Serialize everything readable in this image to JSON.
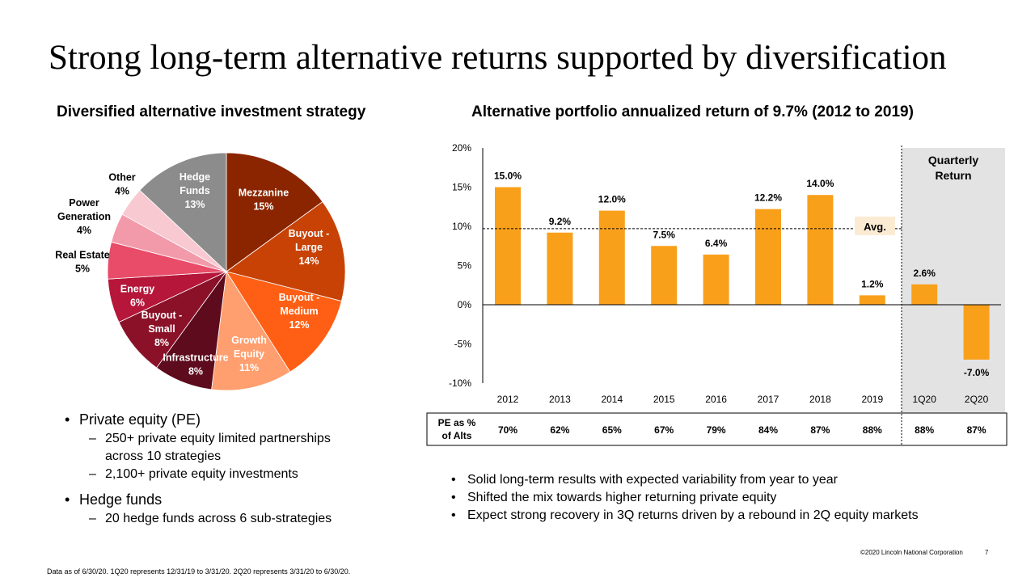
{
  "title": "Strong long-term alternative returns supported by diversification",
  "left_heading": "Diversified alternative investment strategy",
  "right_heading": "Alternative portfolio annualized return of 9.7% (2012 to 2019)",
  "left_bullets": [
    {
      "text": "Private equity (PE)",
      "subs": [
        "250+ private equity limited partnerships",
        "across 10 strategies",
        "2,100+ private equity investments"
      ]
    },
    {
      "text": "Hedge funds",
      "subs": [
        "20 hedge funds across 6 sub-strategies"
      ]
    }
  ],
  "right_bullets": [
    "Solid long-term results with expected variability from year to year",
    "Shifted the mix towards higher returning private equity",
    "Expect strong recovery in 3Q returns driven by a rebound in 2Q equity markets"
  ],
  "footnote": "Data as of 6/30/20.  1Q20 represents 12/31/19 to 3/31/20.  2Q20 represents 3/31/20 to 6/30/20.",
  "copyright": "©2020 Lincoln National Corporation",
  "page_number": "7",
  "chart_data": [
    {
      "type": "pie",
      "slices": [
        {
          "label": [
            "Mezzanine"
          ],
          "pct": "15%",
          "value": 15,
          "color": "#8B2500"
        },
        {
          "label": [
            "Buyout -",
            "Large"
          ],
          "pct": "14%",
          "value": 14,
          "color": "#C84206"
        },
        {
          "label": [
            "Buyout -",
            "Medium"
          ],
          "pct": "12%",
          "value": 12,
          "color": "#FF5F14"
        },
        {
          "label": [
            "Growth",
            "Equity"
          ],
          "pct": "11%",
          "value": 11,
          "color": "#FF9E6E"
        },
        {
          "label": [
            "Infrastructure"
          ],
          "pct": "8%",
          "value": 8,
          "color": "#5E0B1D"
        },
        {
          "label": [
            "Buyout -",
            "Small"
          ],
          "pct": "8%",
          "value": 8,
          "color": "#8A1128"
        },
        {
          "label": [
            "Energy"
          ],
          "pct": "6%",
          "value": 6,
          "color": "#B5163A"
        },
        {
          "label": [
            "Real Estate"
          ],
          "pct": "5%",
          "value": 5,
          "color": "#E84C68"
        },
        {
          "label": [
            "Power",
            "Generation"
          ],
          "pct": "4%",
          "value": 4,
          "color": "#F39AAA"
        },
        {
          "label": [
            "Other"
          ],
          "pct": "4%",
          "value": 4,
          "color": "#F8C9D1"
        },
        {
          "label": [
            "Hedge",
            "Funds"
          ],
          "pct": "13%",
          "value": 13,
          "color": "#8C8C8C"
        }
      ]
    },
    {
      "type": "bar",
      "categories": [
        "2012",
        "2013",
        "2014",
        "2015",
        "2016",
        "2017",
        "2018",
        "2019",
        "1Q20",
        "2Q20"
      ],
      "values": [
        15.0,
        9.2,
        12.0,
        7.5,
        6.4,
        12.2,
        14.0,
        1.2,
        2.6,
        -7.0
      ],
      "labels": [
        "15.0%",
        "9.2%",
        "12.0%",
        "7.5%",
        "6.4%",
        "12.2%",
        "14.0%",
        "1.2%",
        "2.6%",
        "-7.0%"
      ],
      "ylim": [
        -10,
        20
      ],
      "yticks": [
        20,
        15,
        10,
        5,
        0,
        -5,
        -10
      ],
      "ytick_labels": [
        "20%",
        "15%",
        "10%",
        "5%",
        "0%",
        "-5%",
        "-10%"
      ],
      "average": 9.7,
      "average_label": "Avg.",
      "quarterly_label": [
        "Quarterly",
        "Return"
      ],
      "bar_color": "#F9A01B",
      "table": {
        "row_label": [
          "PE as %",
          "of Alts"
        ],
        "values": [
          "70%",
          "62%",
          "65%",
          "67%",
          "79%",
          "84%",
          "87%",
          "88%",
          "88%",
          "87%"
        ]
      }
    }
  ]
}
